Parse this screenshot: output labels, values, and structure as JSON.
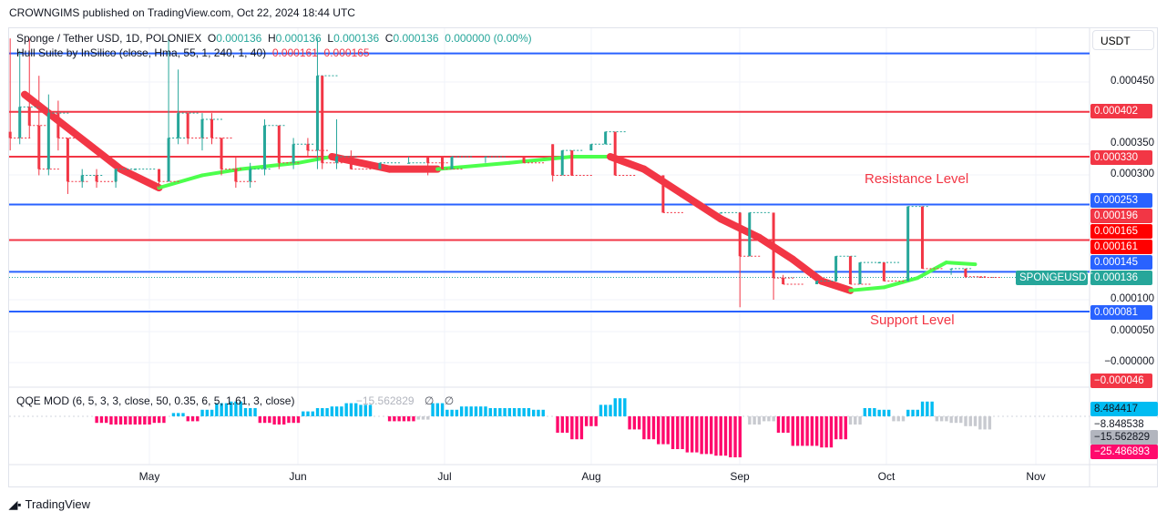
{
  "header": {
    "published": "CROWNGIMS published on TradingView.com, Oct 22, 2024 18:44 UTC"
  },
  "legend": {
    "symbol": "Sponge / Tether USD, 1D, POLONIEX",
    "o_label": "O",
    "o": "0.000136",
    "h_label": "H",
    "h": "0.000136",
    "l_label": "L",
    "l": "0.000136",
    "c_label": "C",
    "c": "0.000136",
    "change": "0.000000 (0.00%)",
    "hull": "Hull Suite by InSilico (close, Hma, 55, 1, 240, 1, 40)",
    "hull_v1": "0.000161",
    "hull_v2": "0.000165"
  },
  "qqe_legend": {
    "name": "QQE MOD (6, 5, 3, 3, close, 50, 0.35, 6, 5, 1.61, 3, close)",
    "value": "−15.562829",
    "na1": "∅",
    "na2": "∅"
  },
  "currency": "USDT",
  "price_ticks": [
    "0.000450",
    "0.000350",
    "0.000300",
    "0.000100",
    "0.000050",
    "−0.000000"
  ],
  "price_tags": [
    {
      "text": "0.000402",
      "color": "#f23645"
    },
    {
      "text": "0.000330",
      "color": "#f23645"
    },
    {
      "text": "0.000253",
      "color": "#2962ff"
    },
    {
      "text": "0.000196",
      "color": "#f23645"
    },
    {
      "text": "0.000165",
      "color": "#ff0000"
    },
    {
      "text": "0.000161",
      "color": "#ff0000"
    },
    {
      "text": "0.000145",
      "color": "#2962ff"
    },
    {
      "text": "0.000136",
      "color": "#26a69a"
    },
    {
      "text": "0.000081",
      "color": "#2962ff"
    },
    {
      "text": "−0.000046",
      "color": "#f23645"
    }
  ],
  "symbol_tag": "SPONGEUSDT",
  "qqe_tags": [
    {
      "text": "8.484417",
      "color": "#00bcf2",
      "fg": "#131722"
    },
    {
      "text": "−8.848538",
      "color": "#ffffff",
      "fg": "#131722"
    },
    {
      "text": "−15.562829",
      "color": "#b2b5be",
      "fg": "#131722"
    },
    {
      "text": "−25.486893",
      "color": "#ff0a6c",
      "fg": "#ffffff"
    }
  ],
  "time_labels": [
    "May",
    "Jun",
    "Jul",
    "Aug",
    "Sep",
    "Oct",
    "Nov"
  ],
  "annotations": {
    "resistance": "Resistance Level",
    "support": "Support Level"
  },
  "footer": {
    "brand": "TradingView"
  },
  "colors": {
    "up": "#26a69a",
    "down": "#f23645",
    "hull_up": "#4cff4c",
    "hull_down": "#f23645",
    "qqe_up": "#00bcf2",
    "qqe_down": "#ff0a6c",
    "qqe_neutral": "#c8cad0",
    "support": "#2962ff",
    "resistance": "#f23645"
  },
  "chart_data": {
    "type": "candlestick",
    "symbol": "SPONGEUSDT",
    "interval": "1D",
    "ylim": [
      -5e-05,
      0.00052
    ],
    "x_ticks": [
      "May",
      "Jun",
      "Jul",
      "Aug",
      "Sep",
      "Oct",
      "Nov"
    ],
    "levels": [
      {
        "value": 0.000496,
        "color": "#2962ff"
      },
      {
        "value": 0.000402,
        "color": "#f23645"
      },
      {
        "value": 0.00033,
        "color": "#f23645"
      },
      {
        "value": 0.000253,
        "color": "#2962ff"
      },
      {
        "value": 0.000196,
        "color": "#f23645"
      },
      {
        "value": 0.000145,
        "color": "#2962ff"
      },
      {
        "value": 8.1e-05,
        "color": "#2962ff"
      }
    ],
    "candles": [
      [
        "2024-04-02",
        0.00037,
        0.00052,
        0.00034,
        0.00036
      ],
      [
        "2024-04-04",
        0.00036,
        0.0005,
        0.00035,
        0.00041
      ],
      [
        "2024-04-06",
        0.00041,
        0.00052,
        0.00036,
        0.00038
      ],
      [
        "2024-04-08",
        0.00038,
        0.00046,
        0.0003,
        0.00031
      ],
      [
        "2024-04-10",
        0.00031,
        0.00043,
        0.0003,
        0.0004
      ],
      [
        "2024-04-12",
        0.0004,
        0.00042,
        0.00034,
        0.00036
      ],
      [
        "2024-04-14",
        0.00036,
        0.00036,
        0.00027,
        0.00029
      ],
      [
        "2024-04-17",
        0.00029,
        0.00031,
        0.00028,
        0.0003
      ],
      [
        "2024-04-20",
        0.0003,
        0.00031,
        0.00028,
        0.00029
      ],
      [
        "2024-04-24",
        0.00029,
        0.00031,
        0.00028,
        0.00031
      ],
      [
        "2024-04-28",
        0.00031,
        0.00031,
        0.00031,
        0.00031
      ],
      [
        "2024-05-03",
        0.00031,
        0.00031,
        0.00028,
        0.00029
      ],
      [
        "2024-05-05",
        0.00029,
        0.00052,
        0.00029,
        0.00036
      ],
      [
        "2024-05-07",
        0.00036,
        0.00047,
        0.00035,
        0.0004
      ],
      [
        "2024-05-09",
        0.0004,
        0.0004,
        0.00035,
        0.00036
      ],
      [
        "2024-05-12",
        0.00036,
        0.0004,
        0.00034,
        0.00039
      ],
      [
        "2024-05-14",
        0.00039,
        0.0004,
        0.00035,
        0.00036
      ],
      [
        "2024-05-16",
        0.00036,
        0.00036,
        0.0003,
        0.00031
      ],
      [
        "2024-05-19",
        0.00031,
        0.00033,
        0.00028,
        0.00029
      ],
      [
        "2024-05-22",
        0.00029,
        0.00032,
        0.00028,
        0.00031
      ],
      [
        "2024-05-25",
        0.00031,
        0.00039,
        0.0003,
        0.00038
      ],
      [
        "2024-05-28",
        0.00038,
        0.00038,
        0.00031,
        0.00032
      ],
      [
        "2024-05-31",
        0.00032,
        0.00036,
        0.00031,
        0.00035
      ],
      [
        "2024-06-03",
        0.00035,
        0.00036,
        0.00033,
        0.00034
      ],
      [
        "2024-06-05",
        0.00034,
        0.00052,
        0.00031,
        0.00046
      ],
      [
        "2024-06-06",
        0.00046,
        0.00046,
        0.00031,
        0.00032
      ],
      [
        "2024-06-09",
        0.00032,
        0.00039,
        0.00031,
        0.00033
      ],
      [
        "2024-06-12",
        0.00033,
        0.00034,
        0.00031,
        0.00031
      ],
      [
        "2024-06-18",
        0.00031,
        0.00032,
        0.00031,
        0.00032
      ],
      [
        "2024-06-24",
        0.00032,
        0.00033,
        0.00032,
        0.00032
      ],
      [
        "2024-06-28",
        0.00033,
        0.00033,
        0.0003,
        0.00032
      ],
      [
        "2024-07-01",
        0.00033,
        0.00033,
        0.00031,
        0.00031
      ],
      [
        "2024-07-03",
        0.00031,
        0.00033,
        0.00031,
        0.00033
      ],
      [
        "2024-07-10",
        0.00033,
        0.00033,
        0.00032,
        0.00033
      ],
      [
        "2024-07-18",
        0.00033,
        0.00033,
        0.00032,
        0.00032
      ],
      [
        "2024-07-24",
        0.00035,
        0.00035,
        0.00029,
        0.0003
      ],
      [
        "2024-07-26",
        0.0003,
        0.00034,
        0.0003,
        0.00034
      ],
      [
        "2024-07-28",
        0.00034,
        0.00034,
        0.0003,
        0.0003
      ],
      [
        "2024-08-01",
        0.00034,
        0.00035,
        0.00034,
        0.00035
      ],
      [
        "2024-08-04",
        0.00035,
        0.00037,
        0.00035,
        0.00037
      ],
      [
        "2024-08-06",
        0.00037,
        0.00037,
        0.0003,
        0.0003
      ],
      [
        "2024-08-16",
        0.0003,
        0.0003,
        0.00024,
        0.00024
      ],
      [
        "2024-08-28",
        0.00024,
        0.00024,
        0.00024,
        0.00024
      ],
      [
        "2024-09-01",
        0.00024,
        0.00024,
        8.8e-05,
        0.00017
      ],
      [
        "2024-09-03",
        0.00017,
        0.00024,
        0.00017,
        0.00024
      ],
      [
        "2024-09-08",
        0.00024,
        0.00024,
        0.0001,
        0.000135
      ],
      [
        "2024-09-10",
        0.000135,
        0.00014,
        0.000125,
        0.000125
      ],
      [
        "2024-09-17",
        0.000125,
        0.00013,
        0.000125,
        0.00013
      ],
      [
        "2024-09-21",
        0.00013,
        0.00017,
        0.00013,
        0.00017
      ],
      [
        "2024-09-24",
        0.00017,
        0.00017,
        0.000125,
        0.000125
      ],
      [
        "2024-09-26",
        0.000125,
        0.00016,
        0.000125,
        0.00016
      ],
      [
        "2024-09-30",
        0.00016,
        0.00016,
        0.00016,
        0.00016
      ],
      [
        "2024-10-01",
        0.00016,
        0.00016,
        0.00013,
        0.00013
      ],
      [
        "2024-10-06",
        0.00013,
        0.00025,
        0.00013,
        0.00025
      ],
      [
        "2024-10-09",
        0.00025,
        0.00025,
        0.00015,
        0.00015
      ],
      [
        "2024-10-15",
        0.00015,
        0.00015,
        0.00014,
        0.00015
      ],
      [
        "2024-10-18",
        0.00015,
        0.00015,
        0.000135,
        0.000137
      ],
      [
        "2024-10-21",
        0.000137,
        0.000137,
        0.000136,
        0.000136
      ]
    ],
    "hull": [
      [
        "2024-04-05",
        0.00043,
        "down"
      ],
      [
        "2024-04-15",
        0.00037,
        "down"
      ],
      [
        "2024-04-25",
        0.00031,
        "down"
      ],
      [
        "2024-05-03",
        0.00028,
        "up"
      ],
      [
        "2024-05-12",
        0.0003,
        "up"
      ],
      [
        "2024-05-20",
        0.00031,
        "up"
      ],
      [
        "2024-06-01",
        0.00032,
        "up"
      ],
      [
        "2024-06-08",
        0.00033,
        "down"
      ],
      [
        "2024-06-20",
        0.00031,
        "down"
      ],
      [
        "2024-06-30",
        0.00031,
        "up"
      ],
      [
        "2024-07-15",
        0.00032,
        "up"
      ],
      [
        "2024-07-28",
        0.00033,
        "up"
      ],
      [
        "2024-08-05",
        0.00033,
        "down"
      ],
      [
        "2024-08-12",
        0.00031,
        "down"
      ],
      [
        "2024-08-20",
        0.00027,
        "down"
      ],
      [
        "2024-08-28",
        0.00023,
        "down"
      ],
      [
        "2024-09-05",
        0.0002,
        "down"
      ],
      [
        "2024-09-12",
        0.000165,
        "down"
      ],
      [
        "2024-09-18",
        0.00013,
        "down"
      ],
      [
        "2024-09-24",
        0.000115,
        "up"
      ],
      [
        "2024-10-01",
        0.00012,
        "up"
      ],
      [
        "2024-10-08",
        0.000135,
        "up"
      ],
      [
        "2024-10-14",
        0.00016,
        "up"
      ],
      [
        "2024-10-20",
        0.000157,
        "down"
      ]
    ],
    "qqe": [
      [
        "2024-04-20",
        -4,
        "down"
      ],
      [
        "2024-04-23",
        -5,
        "down"
      ],
      [
        "2024-04-26",
        -5,
        "down"
      ],
      [
        "2024-04-29",
        -5,
        "down"
      ],
      [
        "2024-05-02",
        -4,
        "down"
      ],
      [
        "2024-05-06",
        2,
        "up"
      ],
      [
        "2024-05-09",
        -3,
        "down"
      ],
      [
        "2024-05-12",
        4,
        "up"
      ],
      [
        "2024-05-15",
        8,
        "up"
      ],
      [
        "2024-05-18",
        9,
        "up"
      ],
      [
        "2024-05-21",
        5,
        "up"
      ],
      [
        "2024-05-24",
        -4,
        "down"
      ],
      [
        "2024-05-27",
        -5,
        "down"
      ],
      [
        "2024-05-30",
        -4,
        "down"
      ],
      [
        "2024-06-02",
        3,
        "up"
      ],
      [
        "2024-06-05",
        5,
        "up"
      ],
      [
        "2024-06-08",
        6,
        "up"
      ],
      [
        "2024-06-11",
        8,
        "up"
      ],
      [
        "2024-06-14",
        7,
        "up"
      ],
      [
        "2024-06-20",
        -3,
        "down"
      ],
      [
        "2024-06-23",
        -3,
        "down"
      ],
      [
        "2024-06-26",
        -2,
        "neutral"
      ],
      [
        "2024-06-29",
        8,
        "up"
      ],
      [
        "2024-07-02",
        4,
        "up"
      ],
      [
        "2024-07-05",
        6,
        "up"
      ],
      [
        "2024-07-08",
        6,
        "up"
      ],
      [
        "2024-07-11",
        5,
        "up"
      ],
      [
        "2024-07-14",
        5,
        "up"
      ],
      [
        "2024-07-17",
        5,
        "up"
      ],
      [
        "2024-07-20",
        4,
        "up"
      ],
      [
        "2024-07-25",
        -10,
        "down"
      ],
      [
        "2024-07-28",
        -14,
        "down"
      ],
      [
        "2024-07-31",
        -6,
        "down"
      ],
      [
        "2024-08-03",
        7,
        "up"
      ],
      [
        "2024-08-06",
        11,
        "up"
      ],
      [
        "2024-08-09",
        -8,
        "down"
      ],
      [
        "2024-08-12",
        -14,
        "down"
      ],
      [
        "2024-08-15",
        -17,
        "down"
      ],
      [
        "2024-08-18",
        -20,
        "down"
      ],
      [
        "2024-08-21",
        -22,
        "down"
      ],
      [
        "2024-08-24",
        -23,
        "down"
      ],
      [
        "2024-08-27",
        -24,
        "down"
      ],
      [
        "2024-08-30",
        -25,
        "down"
      ],
      [
        "2024-09-03",
        -5,
        "neutral"
      ],
      [
        "2024-09-06",
        -3,
        "neutral"
      ],
      [
        "2024-09-09",
        -10,
        "down"
      ],
      [
        "2024-09-12",
        -18,
        "down"
      ],
      [
        "2024-09-15",
        -18,
        "down"
      ],
      [
        "2024-09-18",
        -19,
        "down"
      ],
      [
        "2024-09-21",
        -14,
        "down"
      ],
      [
        "2024-09-24",
        -5,
        "neutral"
      ],
      [
        "2024-09-27",
        5,
        "up"
      ],
      [
        "2024-09-30",
        4,
        "up"
      ],
      [
        "2024-10-03",
        -3,
        "neutral"
      ],
      [
        "2024-10-06",
        4,
        "up"
      ],
      [
        "2024-10-09",
        9,
        "up"
      ],
      [
        "2024-10-12",
        -3,
        "neutral"
      ],
      [
        "2024-10-15",
        -4,
        "neutral"
      ],
      [
        "2024-10-18",
        -6,
        "neutral"
      ],
      [
        "2024-10-21",
        -8,
        "neutral"
      ]
    ]
  }
}
